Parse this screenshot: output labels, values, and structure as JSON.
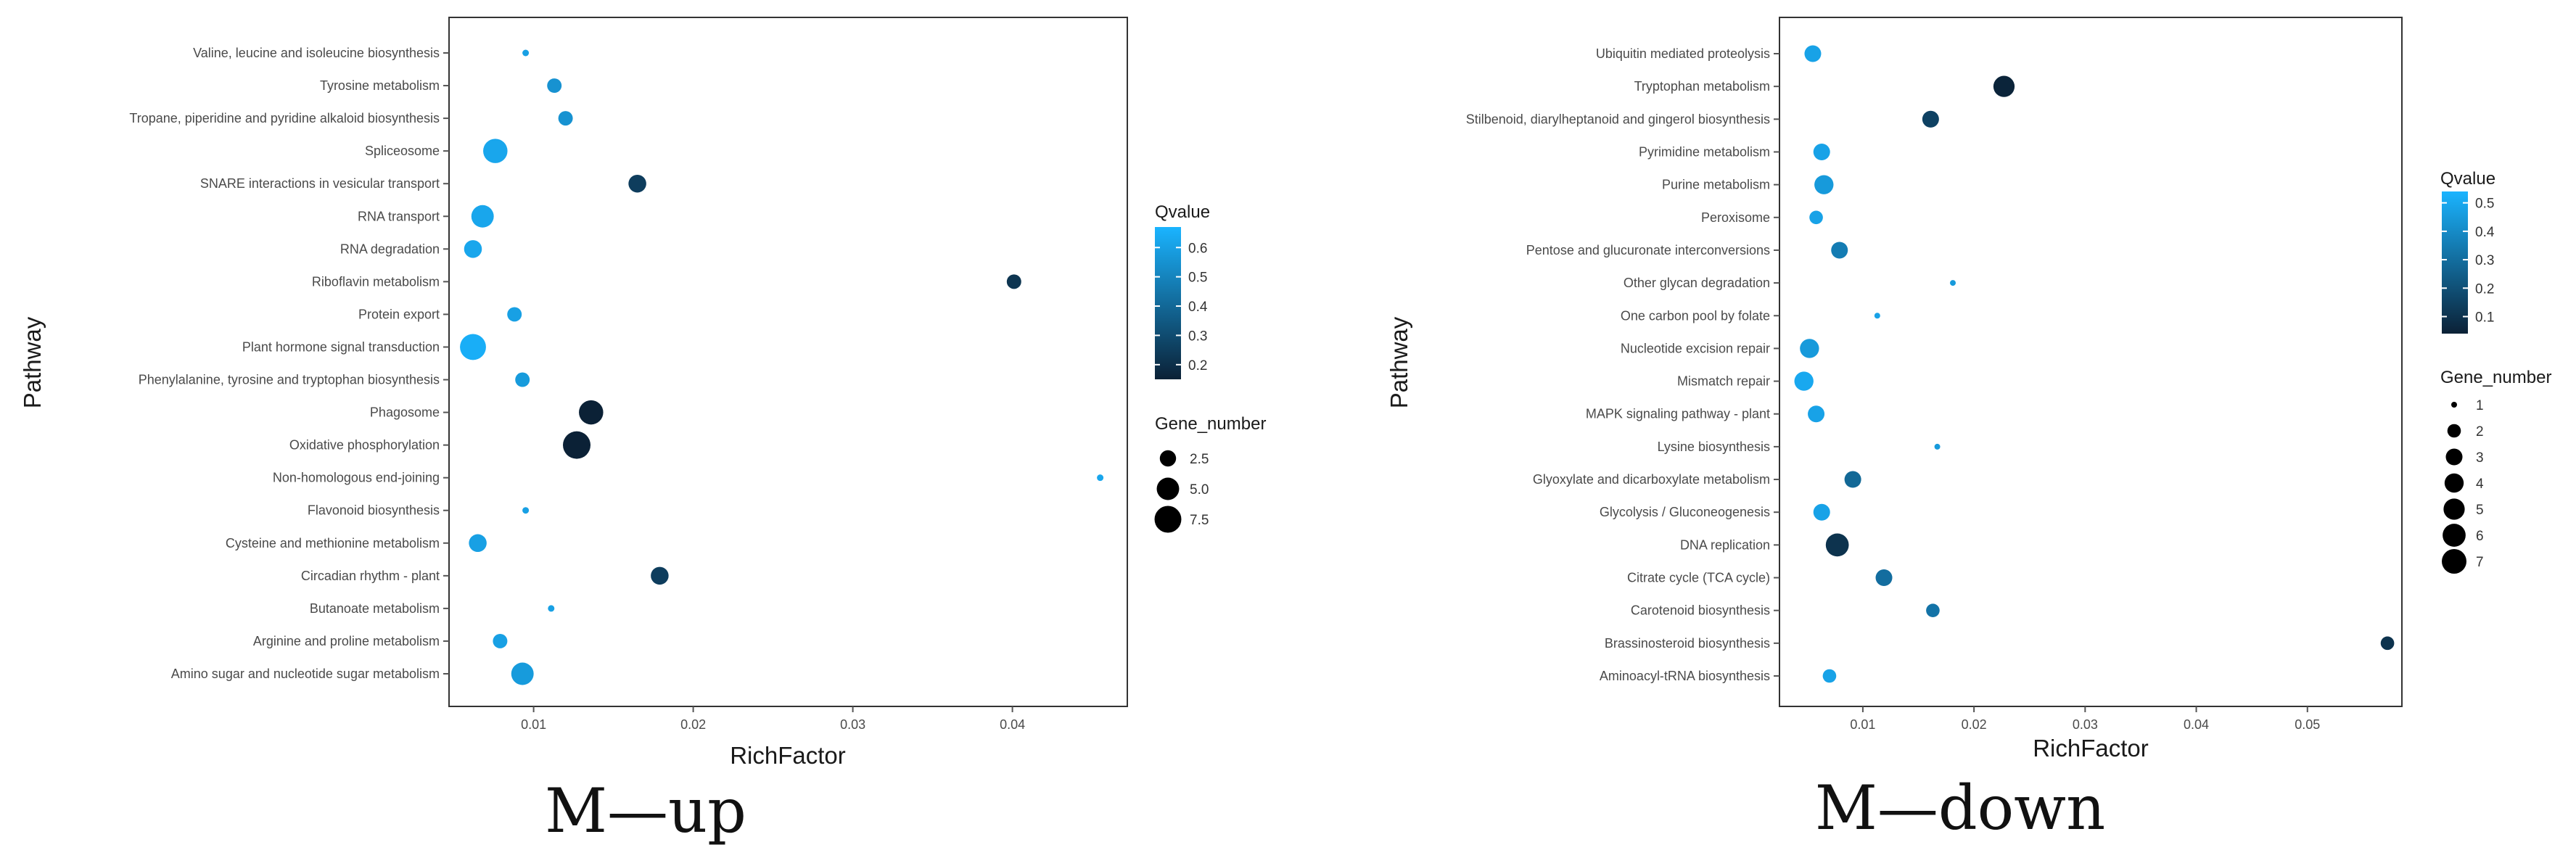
{
  "chart_data": [
    {
      "type": "scatter",
      "title": "M—up",
      "xlabel": "RichFactor",
      "ylabel": "Pathway",
      "xlim": [
        0.0047,
        0.0472
      ],
      "xticks": [
        0.01,
        0.02,
        0.03,
        0.04
      ],
      "xtick_labels": [
        "0.01",
        "0.02",
        "0.03",
        "0.04"
      ],
      "categories": [
        "Valine, leucine and isoleucine biosynthesis",
        "Tyrosine metabolism",
        "Tropane, piperidine and pyridine alkaloid biosynthesis",
        "Spliceosome",
        "SNARE interactions in vesicular transport",
        "RNA transport",
        "RNA degradation",
        "Riboflavin metabolism",
        "Protein export",
        "Plant hormone signal transduction",
        "Phenylalanine, tyrosine and tryptophan biosynthesis",
        "Phagosome",
        "Oxidative phosphorylation",
        "Non-homologous end-joining",
        "Flavonoid biosynthesis",
        "Cysteine and methionine metabolism",
        "Circadian rhythm - plant",
        "Butanoate metabolism",
        "Arginine and proline metabolism",
        "Amino sugar and nucleotide sugar metabolism"
      ],
      "x": [
        0.0095,
        0.0113,
        0.012,
        0.0076,
        0.0165,
        0.0068,
        0.0062,
        0.0401,
        0.0088,
        0.0062,
        0.0093,
        0.0136,
        0.0127,
        0.0455,
        0.0095,
        0.0065,
        0.0179,
        0.0111,
        0.0079,
        0.0093
      ],
      "gene_number": [
        1,
        2,
        2,
        6,
        3,
        5,
        3,
        2,
        2,
        7,
        2,
        6,
        8,
        1,
        1,
        3,
        3,
        1,
        2,
        5
      ],
      "qvalue": [
        0.6,
        0.55,
        0.55,
        0.62,
        0.25,
        0.62,
        0.62,
        0.22,
        0.6,
        0.65,
        0.58,
        0.12,
        0.1,
        0.62,
        0.6,
        0.6,
        0.25,
        0.6,
        0.6,
        0.58
      ],
      "color_legend": {
        "title": "Qvalue",
        "ticks": [
          0.6,
          0.5,
          0.4,
          0.3,
          0.2
        ],
        "tick_labels": [
          "0.6",
          "0.5",
          "0.4",
          "0.3",
          "0.2"
        ],
        "range": [
          0.15,
          0.67
        ]
      },
      "size_legend": {
        "title": "Gene_number",
        "values": [
          2.5,
          5.0,
          7.5
        ],
        "labels": [
          "2.5",
          "5.0",
          "7.5"
        ]
      },
      "grid": false,
      "background": "#ffffff",
      "colors": {
        "low": "#0b2136",
        "high": "#1ab4ff"
      },
      "size_scale": {
        "min_gene": 1,
        "max_gene": 8,
        "min_r": 4.5,
        "max_r": 19
      }
    },
    {
      "type": "scatter",
      "title": "M—down",
      "xlabel": "RichFactor",
      "ylabel": "Pathway",
      "xlim": [
        0.0025,
        0.0585
      ],
      "xticks": [
        0.01,
        0.02,
        0.03,
        0.04,
        0.05
      ],
      "xtick_labels": [
        "0.01",
        "0.02",
        "0.03",
        "0.04",
        "0.05"
      ],
      "categories": [
        "Ubiquitin mediated proteolysis",
        "Tryptophan metabolism",
        "Stilbenoid, diarylheptanoid and gingerol biosynthesis",
        "Pyrimidine metabolism",
        "Purine metabolism",
        "Peroxisome",
        "Pentose and glucuronate interconversions",
        "Other glycan degradation",
        "One carbon pool by folate",
        "Nucleotide excision repair",
        "Mismatch repair",
        "MAPK signaling pathway - plant",
        "Lysine biosynthesis",
        "Glyoxylate and dicarboxylate metabolism",
        "Glycolysis / Gluconeogenesis",
        "DNA replication",
        "Citrate cycle (TCA cycle)",
        "Carotenoid biosynthesis",
        "Brassinosteroid biosynthesis",
        "Aminoacyl-tRNA biosynthesis"
      ],
      "x": [
        0.0055,
        0.0227,
        0.0161,
        0.0063,
        0.0065,
        0.0058,
        0.0079,
        0.0181,
        0.0113,
        0.0052,
        0.0047,
        0.0058,
        0.0167,
        0.0091,
        0.0063,
        0.0077,
        0.0119,
        0.0163,
        0.0572,
        0.007
      ],
      "gene_number": [
        3,
        5,
        3,
        3,
        4,
        2,
        3,
        1,
        1,
        4,
        4,
        3,
        1,
        3,
        3,
        6,
        3,
        2,
        2,
        2
      ],
      "qvalue": [
        0.48,
        0.05,
        0.15,
        0.48,
        0.45,
        0.48,
        0.35,
        0.45,
        0.48,
        0.45,
        0.5,
        0.48,
        0.45,
        0.28,
        0.48,
        0.1,
        0.3,
        0.32,
        0.1,
        0.48
      ],
      "color_legend": {
        "title": "Qvalue",
        "ticks": [
          0.5,
          0.4,
          0.3,
          0.2,
          0.1
        ],
        "tick_labels": [
          "0.5",
          "0.4",
          "0.3",
          "0.2",
          "0.1"
        ],
        "range": [
          0.04,
          0.54
        ]
      },
      "size_legend": {
        "title": "Gene_number",
        "values": [
          1,
          2,
          3,
          4,
          5,
          6,
          7
        ],
        "labels": [
          "1",
          "2",
          "3",
          "4",
          "5",
          "6",
          "7"
        ]
      },
      "grid": false,
      "background": "#ffffff",
      "colors": {
        "low": "#0b2136",
        "high": "#1ab4ff"
      },
      "size_scale": {
        "min_gene": 1,
        "max_gene": 7,
        "min_r": 4,
        "max_r": 17
      }
    }
  ]
}
